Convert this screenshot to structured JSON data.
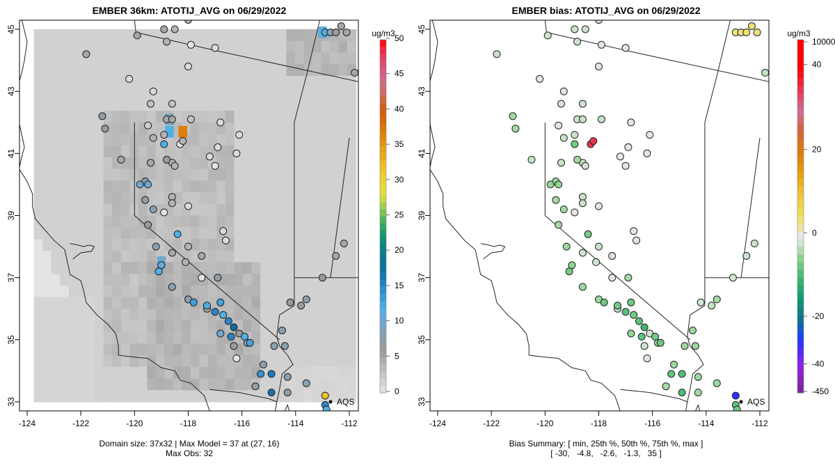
{
  "chart_data": [
    {
      "type": "heatmap",
      "title": "EMBER 36km: ATOTIJ_AVG on 06/29/2022",
      "xlim": [
        -124.3,
        -111.7
      ],
      "ylim": [
        32.7,
        45.3
      ],
      "xticks": [
        "-124",
        "-122",
        "-120",
        "-118",
        "-116",
        "-114",
        "-112"
      ],
      "yticks": [
        "33",
        "35",
        "37",
        "39",
        "41",
        "43",
        "45"
      ],
      "colorbar": {
        "unit": "ug/m3",
        "ticks": [
          "0",
          "5",
          "10",
          "15",
          "20",
          "25",
          "30",
          "35",
          "40",
          "45",
          "50"
        ],
        "range": [
          0,
          50
        ]
      },
      "caption_line1": "Domain size: 37x32 | Max Model = 37 at (27, 16)",
      "caption_line2": "Max Obs: 32",
      "marker_label": "AQS",
      "grid_notable_cells": [
        {
          "lon": -118.2,
          "lat": 41.7,
          "value": 37
        },
        {
          "lon": -118.7,
          "lat": 41.7,
          "value": 12
        },
        {
          "lon": -118.7,
          "lat": 42.1,
          "value": 9
        },
        {
          "lon": -113.0,
          "lat": 44.9,
          "value": 11
        },
        {
          "lon": -119.0,
          "lat": 37.5,
          "value": 10
        }
      ],
      "obs_points": [
        {
          "lon": -118.9,
          "lat": 45.0,
          "v": 5
        },
        {
          "lon": -118.5,
          "lat": 45.0,
          "v": 4
        },
        {
          "lon": -118.0,
          "lat": 45.3,
          "v": 4
        },
        {
          "lon": -119.9,
          "lat": 44.8,
          "v": 5
        },
        {
          "lon": -118.8,
          "lat": 44.6,
          "v": 4
        },
        {
          "lon": -117.9,
          "lat": 44.5,
          "v": 0
        },
        {
          "lon": -121.8,
          "lat": 44.2,
          "v": 5
        },
        {
          "lon": -118.0,
          "lat": 43.8,
          "v": 1
        },
        {
          "lon": -117.0,
          "lat": 44.4,
          "v": 1
        },
        {
          "lon": -120.2,
          "lat": 43.4,
          "v": 1
        },
        {
          "lon": -119.3,
          "lat": 43.0,
          "v": 1
        },
        {
          "lon": -119.4,
          "lat": 42.6,
          "v": 3
        },
        {
          "lon": -118.6,
          "lat": 42.6,
          "v": 3
        },
        {
          "lon": -121.2,
          "lat": 42.2,
          "v": 7
        },
        {
          "lon": -121.1,
          "lat": 41.8,
          "v": 7
        },
        {
          "lon": -119.5,
          "lat": 41.9,
          "v": 2
        },
        {
          "lon": -118.8,
          "lat": 42.1,
          "v": 5
        },
        {
          "lon": -118.6,
          "lat": 42.1,
          "v": 5
        },
        {
          "lon": -119.3,
          "lat": 41.5,
          "v": 4
        },
        {
          "lon": -118.9,
          "lat": 41.6,
          "v": 4
        },
        {
          "lon": -118.9,
          "lat": 41.3,
          "v": 12
        },
        {
          "lon": -118.3,
          "lat": 41.3,
          "v": 0
        },
        {
          "lon": -118.2,
          "lat": 41.4,
          "v": 4
        },
        {
          "lon": -117.9,
          "lat": 42.1,
          "v": 3
        },
        {
          "lon": -116.8,
          "lat": 42.0,
          "v": 1
        },
        {
          "lon": -116.1,
          "lat": 41.6,
          "v": 1
        },
        {
          "lon": -116.2,
          "lat": 41.0,
          "v": 1
        },
        {
          "lon": -116.9,
          "lat": 41.2,
          "v": 1
        },
        {
          "lon": -117.2,
          "lat": 40.9,
          "v": 1
        },
        {
          "lon": -117.0,
          "lat": 40.6,
          "v": 0
        },
        {
          "lon": -118.6,
          "lat": 40.7,
          "v": 4
        },
        {
          "lon": -118.8,
          "lat": 40.8,
          "v": 7
        },
        {
          "lon": -118.5,
          "lat": 40.6,
          "v": 4
        },
        {
          "lon": -119.4,
          "lat": 40.7,
          "v": 5
        },
        {
          "lon": -120.5,
          "lat": 40.8,
          "v": 5
        },
        {
          "lon": -119.6,
          "lat": 40.1,
          "v": 8
        },
        {
          "lon": -119.8,
          "lat": 40.0,
          "v": 10
        },
        {
          "lon": -119.5,
          "lat": 40.0,
          "v": 10
        },
        {
          "lon": -119.6,
          "lat": 39.5,
          "v": 7
        },
        {
          "lon": -119.3,
          "lat": 39.2,
          "v": 8
        },
        {
          "lon": -118.6,
          "lat": 39.6,
          "v": 4
        },
        {
          "lon": -118.6,
          "lat": 39.4,
          "v": 4
        },
        {
          "lon": -118.9,
          "lat": 39.1,
          "v": 0
        },
        {
          "lon": -118.0,
          "lat": 39.3,
          "v": 1
        },
        {
          "lon": -119.5,
          "lat": 38.7,
          "v": 7
        },
        {
          "lon": -118.4,
          "lat": 38.4,
          "v": 12
        },
        {
          "lon": -119.2,
          "lat": 38.0,
          "v": 8
        },
        {
          "lon": -118.6,
          "lat": 37.8,
          "v": 5
        },
        {
          "lon": -118.0,
          "lat": 38.0,
          "v": 4
        },
        {
          "lon": -116.7,
          "lat": 38.5,
          "v": 1
        },
        {
          "lon": -116.6,
          "lat": 38.2,
          "v": 1
        },
        {
          "lon": -118.1,
          "lat": 37.5,
          "v": 4
        },
        {
          "lon": -117.5,
          "lat": 37.7,
          "v": 5
        },
        {
          "lon": -119.0,
          "lat": 37.4,
          "v": 10
        },
        {
          "lon": -119.1,
          "lat": 37.2,
          "v": 12
        },
        {
          "lon": -117.5,
          "lat": 37.0,
          "v": 0
        },
        {
          "lon": -116.9,
          "lat": 37.0,
          "v": 7
        },
        {
          "lon": -118.6,
          "lat": 36.7,
          "v": 8
        },
        {
          "lon": -118.0,
          "lat": 36.3,
          "v": 8
        },
        {
          "lon": -117.3,
          "lat": 36.0,
          "v": 5
        },
        {
          "lon": -116.8,
          "lat": 35.2,
          "v": 10
        },
        {
          "lon": -116.1,
          "lat": 35.2,
          "v": 6
        },
        {
          "lon": -116.3,
          "lat": 34.8,
          "v": 6
        },
        {
          "lon": -115.8,
          "lat": 34.9,
          "v": 7
        },
        {
          "lon": -116.2,
          "lat": 34.4,
          "v": 0
        },
        {
          "lon": -114.5,
          "lat": 35.3,
          "v": 8
        },
        {
          "lon": -114.4,
          "lat": 34.8,
          "v": 8
        },
        {
          "lon": -117.3,
          "lat": 36.1,
          "v": 12
        },
        {
          "lon": -117.0,
          "lat": 35.9,
          "v": 15
        },
        {
          "lon": -116.7,
          "lat": 35.8,
          "v": 12
        },
        {
          "lon": -116.5,
          "lat": 35.6,
          "v": 15
        },
        {
          "lon": -116.3,
          "lat": 35.4,
          "v": 18
        },
        {
          "lon": -116.4,
          "lat": 35.1,
          "v": 15
        },
        {
          "lon": -115.9,
          "lat": 35.1,
          "v": 12
        },
        {
          "lon": -115.7,
          "lat": 34.9,
          "v": 13
        },
        {
          "lon": -116.8,
          "lat": 36.2,
          "v": 13
        },
        {
          "lon": -117.8,
          "lat": 36.2,
          "v": 13
        },
        {
          "lon": -114.8,
          "lat": 34.8,
          "v": 8
        },
        {
          "lon": -115.2,
          "lat": 34.2,
          "v": 8
        },
        {
          "lon": -115.3,
          "lat": 33.9,
          "v": 14
        },
        {
          "lon": -114.9,
          "lat": 33.9,
          "v": 16
        },
        {
          "lon": -114.3,
          "lat": 33.8,
          "v": 8
        },
        {
          "lon": -113.6,
          "lat": 33.6,
          "v": 8
        },
        {
          "lon": -115.5,
          "lat": 33.5,
          "v": 7
        },
        {
          "lon": -114.9,
          "lat": 33.3,
          "v": 17
        },
        {
          "lon": -114.3,
          "lat": 33.3,
          "v": 7
        },
        {
          "lon": -112.9,
          "lat": 33.2,
          "v": 32
        },
        {
          "lon": -112.9,
          "lat": 32.9,
          "v": 15
        },
        {
          "lon": -112.85,
          "lat": 32.75,
          "v": 12
        },
        {
          "lon": -114.2,
          "lat": 36.2,
          "v": 6
        },
        {
          "lon": -113.8,
          "lat": 36.1,
          "v": 6
        },
        {
          "lon": -113.6,
          "lat": 36.3,
          "v": 7
        },
        {
          "lon": -113.0,
          "lat": 37.0,
          "v": 6
        },
        {
          "lon": -112.5,
          "lat": 37.7,
          "v": 5
        },
        {
          "lon": -112.9,
          "lat": 44.9,
          "v": 12
        },
        {
          "lon": -112.7,
          "lat": 44.9,
          "v": 8
        },
        {
          "lon": -112.5,
          "lat": 44.9,
          "v": 6
        },
        {
          "lon": -112.3,
          "lat": 45.1,
          "v": 5
        },
        {
          "lon": -112.1,
          "lat": 44.9,
          "v": 5
        },
        {
          "lon": -111.8,
          "lat": 43.6,
          "v": 5
        },
        {
          "lon": -112.2,
          "lat": 38.1,
          "v": 5
        }
      ]
    },
    {
      "type": "scatter",
      "title": "EMBER bias: ATOTIJ_AVG on 06/29/2022",
      "xlim": [
        -124.3,
        -111.7
      ],
      "ylim": [
        32.7,
        45.3
      ],
      "xticks": [
        "-124",
        "-122",
        "-120",
        "-118",
        "-116",
        "-114",
        "-112"
      ],
      "yticks": [
        "33",
        "35",
        "37",
        "39",
        "41",
        "43",
        "45"
      ],
      "colorbar": {
        "unit": "ug/m3",
        "ticks": [
          "-450",
          "-40",
          "-20",
          "0",
          "20",
          "40",
          "10000"
        ]
      },
      "caption_line1": "Bias Summary: [ min, 25th %, 50th %, 75th %, max ]",
      "caption_line2": "[ -30,   -4.8,   -2.6,   -1.3,   35 ]",
      "bias_summary": {
        "min": -30,
        "p25": -4.8,
        "p50": -2.6,
        "p75": -1.3,
        "max": 35
      },
      "marker_label": "AQS"
    }
  ],
  "colors": {
    "land_fill": "#d9d9d9",
    "ocean_fill": "#e6e6e6",
    "frame": "#000000"
  }
}
